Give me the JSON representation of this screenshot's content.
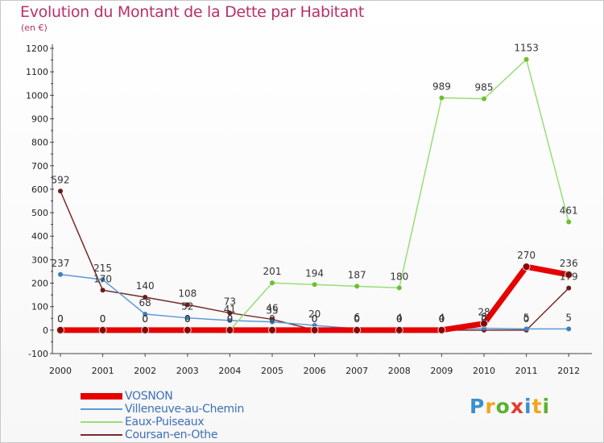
{
  "header": {
    "title": "Evolution du Montant de la Dette par Habitant",
    "subtitle": "(en €)"
  },
  "logo": {
    "letters": [
      "P",
      "r",
      "o",
      "x",
      "i",
      "t",
      "i"
    ],
    "colors": [
      "#3a8fd0",
      "#f2a51c",
      "#5cb130",
      "#e43b2e",
      "#3a8fd0",
      "#f2a51c",
      "#5cb130"
    ]
  },
  "chart_data": {
    "type": "line",
    "x": [
      "2000",
      "2001",
      "2002",
      "2003",
      "2004",
      "2005",
      "2006",
      "2007",
      "2008",
      "2009",
      "2010",
      "2011",
      "2012"
    ],
    "ylim": [
      -100,
      1200
    ],
    "yticks": [
      -100,
      0,
      100,
      200,
      300,
      400,
      500,
      600,
      700,
      800,
      900,
      1000,
      1100,
      1200
    ],
    "grid": false,
    "legend_position": "bottom-left",
    "series": [
      {
        "name": "VOSNON",
        "color": "#e60000",
        "marker": "#8b0000",
        "width": 7,
        "values": [
          0,
          0,
          0,
          0,
          0,
          0,
          0,
          0,
          0,
          0,
          28,
          270,
          236
        ],
        "labels": [
          "0",
          "0",
          "0",
          "0",
          "0",
          "0",
          "0",
          "0",
          "0",
          "0",
          "28",
          "270",
          "236"
        ]
      },
      {
        "name": "Villeneuve-au-Chemin",
        "color": "#5b9bd5",
        "marker": "#3f7fbf",
        "width": 1.5,
        "values": [
          237,
          215,
          68,
          52,
          41,
          35,
          20,
          6,
          4,
          4,
          8,
          5,
          5
        ],
        "labels": [
          "237",
          "215",
          "68",
          "52",
          "41",
          "35",
          "20",
          "6",
          "4",
          "4",
          "8",
          "5",
          "5"
        ]
      },
      {
        "name": "Eaux-Puiseaux",
        "color": "#99dd77",
        "marker": "#6cc030",
        "width": 1.5,
        "values": [
          0,
          0,
          0,
          0,
          0,
          201,
          194,
          187,
          180,
          989,
          985,
          1153,
          461
        ],
        "labels": [
          "0",
          "0",
          "0",
          "0",
          "0",
          "201",
          "194",
          "187",
          "180",
          "989",
          "985",
          "1153",
          "461"
        ]
      },
      {
        "name": "Coursan-en-Othe",
        "color": "#7a2a2a",
        "marker": "#6a1c1c",
        "width": 1.5,
        "values": [
          592,
          170,
          140,
          108,
          73,
          46,
          0,
          0,
          0,
          0,
          0,
          0,
          179
        ],
        "labels": [
          "592",
          "170",
          "140",
          "108",
          "73",
          "46",
          "0",
          "0",
          "0",
          "0",
          "0",
          "0",
          "179"
        ]
      }
    ]
  }
}
